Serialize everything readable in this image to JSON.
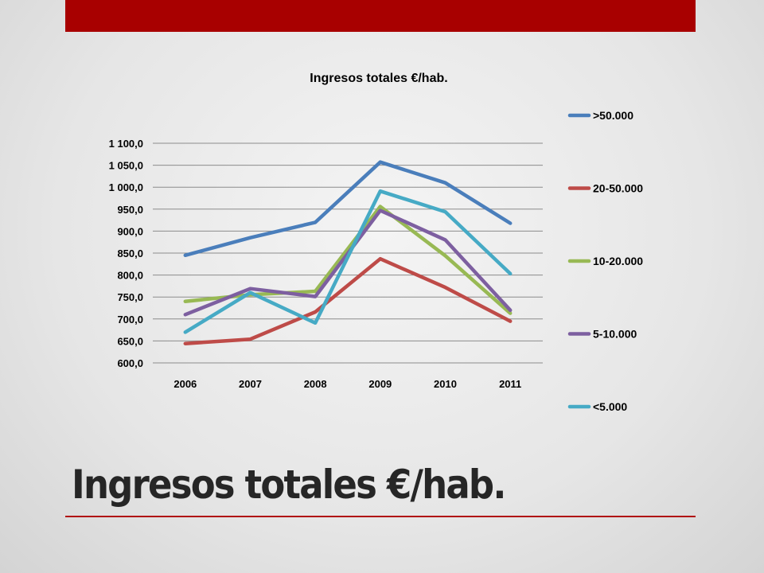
{
  "slide": {
    "title": "Ingresos totales €/hab.",
    "accent_color": "#a80000"
  },
  "chart_data": {
    "type": "line",
    "title": "Ingresos totales €/hab.",
    "xlabel": "",
    "ylabel": "",
    "x": [
      "2006",
      "2007",
      "2008",
      "2009",
      "2010",
      "2011"
    ],
    "ylim": [
      600,
      1100
    ],
    "ytick_step": 50,
    "yticks": [
      "600,0",
      "650,0",
      "700,0",
      "750,0",
      "800,0",
      "850,0",
      "900,0",
      "950,0",
      "1 000,0",
      "1 050,0",
      "1 100,0"
    ],
    "grid": true,
    "legend_position": "right",
    "series": [
      {
        "name": ">50.000",
        "color": "#4a7ebb",
        "values": [
          845,
          885,
          920,
          1057,
          1010,
          918
        ]
      },
      {
        "name": "20-50.000",
        "color": "#be4b48",
        "values": [
          644,
          654,
          716,
          837,
          772,
          695
        ]
      },
      {
        "name": "10-20.000",
        "color": "#98b954",
        "values": [
          740,
          755,
          763,
          956,
          844,
          713
        ]
      },
      {
        "name": "5-10.000",
        "color": "#7d5fa0",
        "values": [
          710,
          769,
          751,
          947,
          880,
          720
        ]
      },
      {
        "name": "<5.000",
        "color": "#46aac5",
        "values": [
          670,
          760,
          691,
          991,
          944,
          803
        ]
      }
    ]
  }
}
